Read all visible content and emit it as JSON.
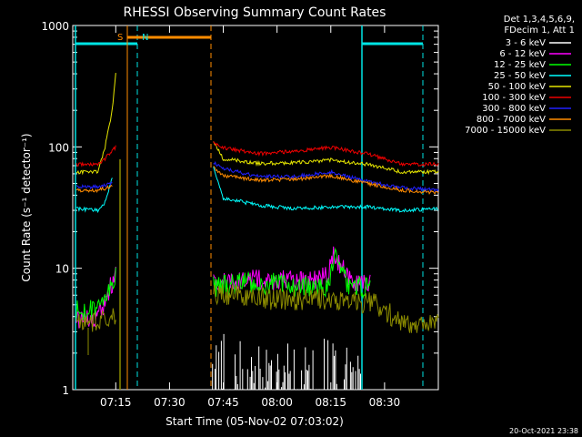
{
  "title": "RHESSI Observing Summary Count Rates",
  "date_stamp": "20-Oct-2021 23:38",
  "legend_header": [
    "Det 1,3,4,5,6,9,",
    "FDecim 1, Att 1"
  ],
  "colors": {
    "background": "#000000",
    "axes": "#ffffff",
    "cyan_markers": "#00e5e5",
    "saa_bar": "#ff8c00"
  },
  "chart_data": {
    "type": "line",
    "title": "RHESSI Observing Summary Count Rates",
    "xlabel": "Start Time (05-Nov-02 07:03:02)",
    "ylabel": "Count Rate (s⁻¹ detector⁻¹)",
    "yscale": "log",
    "xlim": [
      "07:03",
      "08:45"
    ],
    "ylim": [
      1,
      1000
    ],
    "x_ticks": [
      "07:15",
      "07:30",
      "07:45",
      "08:00",
      "08:15",
      "08:30"
    ],
    "y_ticks": [
      "1",
      "10",
      "100",
      "1000"
    ],
    "grid": false,
    "legend_position": "right, outside plot",
    "annotations": [
      {
        "label": "S",
        "time": "07:12",
        "color": "#ff8c00"
      },
      {
        "label": "N",
        "time": "07:16",
        "color": "#00e5e5"
      }
    ],
    "data_gaps": [
      {
        "from": "07:16",
        "to": "07:41"
      }
    ],
    "series": [
      {
        "name": "3 - 6 keV",
        "color": "#ffffff",
        "x": [
          "07:42",
          "07:50",
          "08:00",
          "08:10",
          "08:18",
          "08:24"
        ],
        "values": [
          1.8,
          1.4,
          1.6,
          1.4,
          1.8,
          1.5
        ]
      },
      {
        "name": "6 - 12 keV",
        "color": "#ff00ff",
        "x": [
          "07:04",
          "07:10",
          "07:15",
          "07:42",
          "07:50",
          "08:00",
          "08:10",
          "08:14",
          "08:16",
          "08:20",
          "08:26"
        ],
        "values": [
          3.8,
          3.8,
          9,
          7.5,
          8,
          8,
          8,
          8.5,
          13,
          8,
          7.5
        ]
      },
      {
        "name": "12 - 25 keV",
        "color": "#00ff00",
        "x": [
          "07:04",
          "07:10",
          "07:15",
          "07:42",
          "07:50",
          "08:00",
          "08:10",
          "08:14",
          "08:16",
          "08:20",
          "08:26"
        ],
        "values": [
          4.5,
          4.5,
          9,
          7,
          7.5,
          7.5,
          7,
          7,
          13,
          7,
          7
        ]
      },
      {
        "name": "25 - 50 keV",
        "color": "#00ffff",
        "x": [
          "07:04",
          "07:10",
          "07:12",
          "07:14",
          "07:42",
          "07:45",
          "07:55",
          "08:05",
          "08:15",
          "08:25",
          "08:35",
          "08:45"
        ],
        "values": [
          31,
          30,
          35,
          55,
          70,
          38,
          33,
          31,
          32,
          32,
          30,
          31
        ]
      },
      {
        "name": "50 - 100 keV",
        "color": "#e6e600",
        "x": [
          "07:04",
          "07:10",
          "07:12",
          "07:14",
          "07:15",
          "07:42",
          "07:45",
          "07:55",
          "08:05",
          "08:15",
          "08:25",
          "08:35",
          "08:45"
        ],
        "values": [
          62,
          62,
          100,
          200,
          400,
          115,
          80,
          73,
          74,
          78,
          72,
          62,
          62
        ]
      },
      {
        "name": "100 - 300 keV",
        "color": "#ee0000",
        "x": [
          "07:04",
          "07:10",
          "07:12",
          "07:15",
          "07:42",
          "07:45",
          "07:55",
          "08:05",
          "08:15",
          "08:25",
          "08:35",
          "08:45"
        ],
        "values": [
          72,
          72,
          80,
          100,
          110,
          98,
          88,
          92,
          99,
          88,
          72,
          72
        ]
      },
      {
        "name": "300 - 800 keV",
        "color": "#2020ff",
        "x": [
          "07:04",
          "07:10",
          "07:14",
          "07:42",
          "07:45",
          "07:55",
          "08:05",
          "08:15",
          "08:25",
          "08:35",
          "08:45"
        ],
        "values": [
          47,
          47,
          50,
          75,
          66,
          57,
          57,
          62,
          52,
          46,
          44
        ]
      },
      {
        "name": "800 - 7000 keV",
        "color": "#ff8c00",
        "x": [
          "07:04",
          "07:10",
          "07:14",
          "07:42",
          "07:45",
          "07:55",
          "08:05",
          "08:15",
          "08:25",
          "08:35",
          "08:45"
        ],
        "values": [
          44,
          44,
          47,
          68,
          58,
          53,
          54,
          58,
          50,
          44,
          42
        ]
      },
      {
        "name": "7000 - 15000 keV",
        "color": "#8b8b00",
        "x": [
          "07:04",
          "07:10",
          "07:15",
          "07:42",
          "07:50",
          "08:00",
          "08:10",
          "08:20",
          "08:28",
          "08:35",
          "08:45"
        ],
        "values": [
          3.5,
          3.7,
          4,
          6,
          6,
          5.5,
          5.5,
          5.5,
          5,
          3.5,
          3.5
        ]
      }
    ]
  }
}
